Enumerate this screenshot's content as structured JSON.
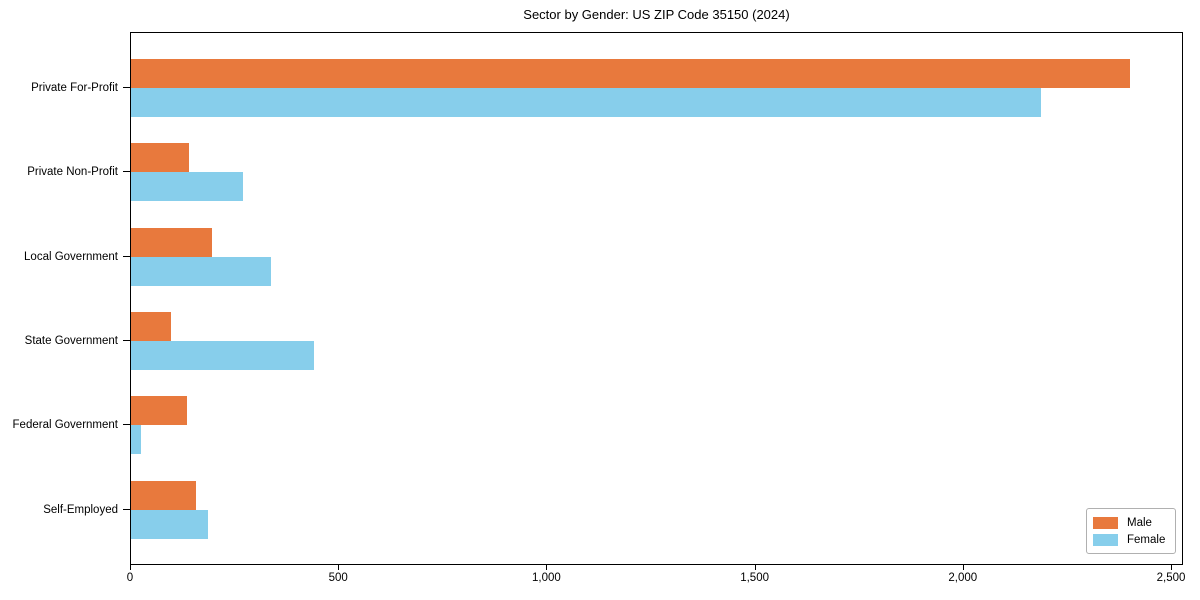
{
  "chart_data": {
    "type": "bar",
    "orientation": "horizontal",
    "title": "Sector by Gender: US ZIP Code 35150 (2024)",
    "categories": [
      "Private For-Profit",
      "Private Non-Profit",
      "Local Government",
      "State Government",
      "Federal Government",
      "Self-Employed"
    ],
    "series": [
      {
        "name": "Male",
        "color": "#E8793D",
        "values": [
          2400,
          140,
          195,
          95,
          135,
          155
        ]
      },
      {
        "name": "Female",
        "color": "#87CEEB",
        "values": [
          2185,
          270,
          335,
          440,
          25,
          185
        ]
      }
    ],
    "xlabel": "",
    "ylabel": "",
    "xlim": [
      0,
      2500
    ],
    "xticks": [
      0,
      500,
      1000,
      1500,
      2000,
      2500
    ],
    "xtick_labels": [
      "0",
      "500",
      "1,000",
      "1,500",
      "2,000",
      "2,500"
    ],
    "grid": false,
    "legend": {
      "position": "lower right"
    }
  },
  "colors": {
    "background": "#FFFFFF",
    "axis": "#000000",
    "male": "#E8793D",
    "female": "#87CEEB",
    "legend_border": "#B0B0B0"
  }
}
